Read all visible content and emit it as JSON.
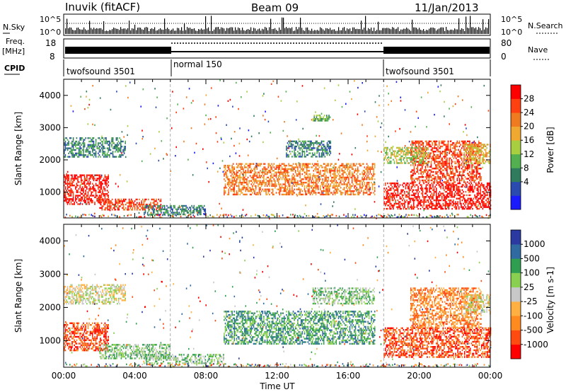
{
  "header": {
    "station": "Inuvik (fitACF)",
    "beam": "Beam 09",
    "date": "11/Jan/2013"
  },
  "strip_panels": {
    "nsky_label": "N.Sky",
    "nsky_ticks": [
      "10^5",
      "10^0"
    ],
    "nsearch_label": "N.Search",
    "freq_label_1": "Freq.",
    "freq_label_2": "[MHz]",
    "freq_ticks": [
      "18",
      "8"
    ],
    "nave_label": "Nave",
    "nave_ticks": [
      "80",
      "0"
    ],
    "cpid_label": "CPID",
    "cpid_segments": [
      {
        "label": "twofsound 3501",
        "start_hour": 0,
        "end_hour": 6
      },
      {
        "label": "normal 150",
        "start_hour": 6,
        "end_hour": 18
      },
      {
        "label": "twofsound 3501",
        "start_hour": 18,
        "end_hour": 24
      }
    ]
  },
  "colors": {
    "power": [
      "#1a1aff",
      "#2a4ab0",
      "#2f7b5d",
      "#53b050",
      "#a8cf40",
      "#f0a830",
      "#f07a20",
      "#ff4010",
      "#ff0000"
    ],
    "velocity": [
      "#ff0000",
      "#ff4a10",
      "#ff8a20",
      "#ffb040",
      "#c8c8c8",
      "#8ad050",
      "#2f9e50",
      "#2f6aa0",
      "#2a3aa0"
    ]
  },
  "chart_data": [
    {
      "type": "heatmap",
      "name": "power-panel",
      "ylabel": "Slant Range [km]",
      "xlim": [
        0,
        24
      ],
      "ylim": [
        200,
        4500
      ],
      "yticks": [
        "4000",
        "3000",
        "2000",
        "1000"
      ],
      "colorbar_label": "Power [dB]",
      "colorbar_ticks": [
        "28",
        "24",
        "20",
        "16",
        "12",
        "8",
        "4"
      ],
      "mode_changes_hours": [
        6,
        18
      ],
      "regions": [
        {
          "x0": 0.0,
          "x1": 2.5,
          "y0": 650,
          "y1": 1550,
          "level": 8
        },
        {
          "x0": 0.0,
          "x1": 3.5,
          "y0": 2100,
          "y1": 2700,
          "level": 2
        },
        {
          "x0": 2.0,
          "x1": 5.5,
          "y0": 450,
          "y1": 800,
          "level": 7
        },
        {
          "x0": 4.5,
          "x1": 8.0,
          "y0": 300,
          "y1": 600,
          "level": 2
        },
        {
          "x0": 9.0,
          "x1": 17.5,
          "y0": 900,
          "y1": 1900,
          "level": 6
        },
        {
          "x0": 12.5,
          "x1": 15.0,
          "y0": 2100,
          "y1": 2600,
          "level": 2
        },
        {
          "x0": 14.0,
          "x1": 15.0,
          "y0": 3200,
          "y1": 3400,
          "level": 3
        },
        {
          "x0": 18.0,
          "x1": 24.0,
          "y0": 500,
          "y1": 1300,
          "level": 8
        },
        {
          "x0": 19.5,
          "x1": 23.5,
          "y0": 1300,
          "y1": 2600,
          "level": 7
        },
        {
          "x0": 18.0,
          "x1": 20.5,
          "y0": 1900,
          "y1": 2400,
          "level": 4
        },
        {
          "x0": 22.5,
          "x1": 24.0,
          "y0": 1900,
          "y1": 2500,
          "level": 5
        }
      ]
    },
    {
      "type": "heatmap",
      "name": "velocity-panel",
      "xlabel": "Time UT",
      "ylabel": "Slant Range [km]",
      "xlim": [
        0,
        24
      ],
      "ylim": [
        200,
        4500
      ],
      "xticks": [
        "00:00",
        "04:00",
        "08:00",
        "12:00",
        "16:00",
        "20:00",
        "00:00"
      ],
      "yticks": [
        "4000",
        "3000",
        "2000",
        "1000"
      ],
      "colorbar_label": "Velocity [m s-1]",
      "colorbar_ticks": [
        "1000",
        "500",
        "100",
        "25",
        "-25",
        "-100",
        "-500",
        "-1000"
      ],
      "mode_changes_hours": [
        6,
        18
      ],
      "regions": [
        {
          "x0": 0.0,
          "x1": 2.5,
          "y0": 700,
          "y1": 1550,
          "level": 1
        },
        {
          "x0": 0.0,
          "x1": 3.5,
          "y0": 2100,
          "y1": 2700,
          "level": 4
        },
        {
          "x0": 2.0,
          "x1": 6.0,
          "y0": 450,
          "y1": 900,
          "level": 5
        },
        {
          "x0": 4.5,
          "x1": 9.0,
          "y0": 300,
          "y1": 600,
          "level": 5
        },
        {
          "x0": 9.0,
          "x1": 17.5,
          "y0": 900,
          "y1": 1900,
          "level": 6
        },
        {
          "x0": 14.0,
          "x1": 17.5,
          "y0": 2100,
          "y1": 2600,
          "level": 5
        },
        {
          "x0": 18.0,
          "x1": 24.0,
          "y0": 500,
          "y1": 1400,
          "level": 1
        },
        {
          "x0": 19.5,
          "x1": 23.5,
          "y0": 1400,
          "y1": 2600,
          "level": 2
        },
        {
          "x0": 22.5,
          "x1": 24.0,
          "y0": 1800,
          "y1": 2400,
          "level": 4
        }
      ]
    }
  ]
}
